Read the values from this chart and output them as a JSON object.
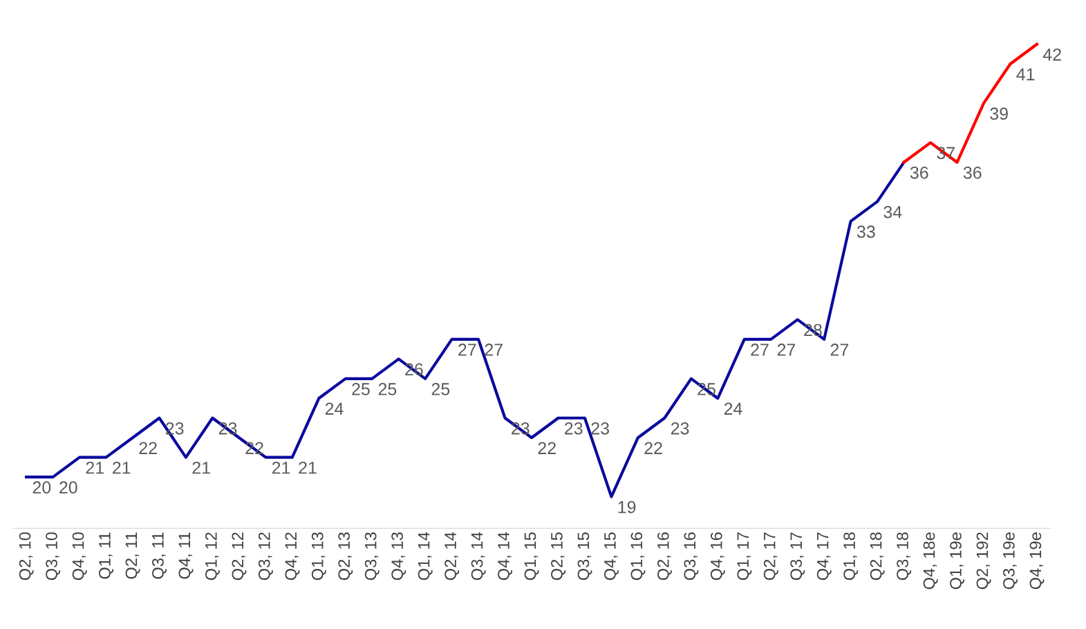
{
  "chart_data": {
    "type": "line",
    "categories": [
      "Q2, 10",
      "Q3, 10",
      "Q4, 10",
      "Q1, 11",
      "Q2, 11",
      "Q3, 11",
      "Q4, 11",
      "Q1, 12",
      "Q2, 12",
      "Q3, 12",
      "Q4, 12",
      "Q1, 13",
      "Q2, 13",
      "Q3, 13",
      "Q4, 13",
      "Q1, 14",
      "Q2, 14",
      "Q3, 14",
      "Q4, 14",
      "Q1, 15",
      "Q2, 15",
      "Q3, 15",
      "Q4, 15",
      "Q1, 16",
      "Q2, 16",
      "Q3, 16",
      "Q4, 16",
      "Q1, 17",
      "Q2, 17",
      "Q3, 17",
      "Q4, 17",
      "Q1, 18",
      "Q2, 18",
      "Q3, 18",
      "Q4, 18e",
      "Q1, 19e",
      "Q2, 192",
      "Q3, 19e",
      "Q4, 19e"
    ],
    "series": [
      {
        "color": "#0a0a9e",
        "values": [
          20,
          20,
          21,
          21,
          22,
          23,
          21,
          23,
          22,
          21,
          21,
          24,
          25,
          25,
          26,
          25,
          27,
          27,
          23,
          22,
          23,
          23,
          19,
          22,
          23,
          25,
          24,
          27,
          27,
          28,
          27,
          33,
          34,
          36,
          null,
          null,
          null,
          null,
          null
        ],
        "value_labels": [
          "20",
          "20",
          "21",
          "21",
          "22",
          "23",
          "21",
          "23",
          "22",
          "21",
          "21",
          "24",
          "25",
          "25",
          "26",
          "25",
          "27",
          "27",
          "23",
          "22",
          "23",
          "23",
          "19",
          "22",
          "23",
          "25",
          "24",
          "27",
          "27",
          "28",
          "27",
          "33",
          "34",
          "36",
          null,
          null,
          null,
          null,
          null
        ]
      },
      {
        "color": "#ff0000",
        "values": [
          null,
          null,
          null,
          null,
          null,
          null,
          null,
          null,
          null,
          null,
          null,
          null,
          null,
          null,
          null,
          null,
          null,
          null,
          null,
          null,
          null,
          null,
          null,
          null,
          null,
          null,
          null,
          null,
          null,
          null,
          null,
          null,
          null,
          36,
          37,
          36,
          39,
          41,
          42
        ],
        "value_labels": [
          null,
          null,
          null,
          null,
          null,
          null,
          null,
          null,
          null,
          null,
          null,
          null,
          null,
          null,
          null,
          null,
          null,
          null,
          null,
          null,
          null,
          null,
          null,
          null,
          null,
          null,
          null,
          null,
          null,
          null,
          null,
          null,
          null,
          null,
          "37",
          "36",
          "39",
          "41",
          "42"
        ]
      }
    ],
    "grid": false,
    "legend": false,
    "marker": "none",
    "line_style": "solid"
  }
}
